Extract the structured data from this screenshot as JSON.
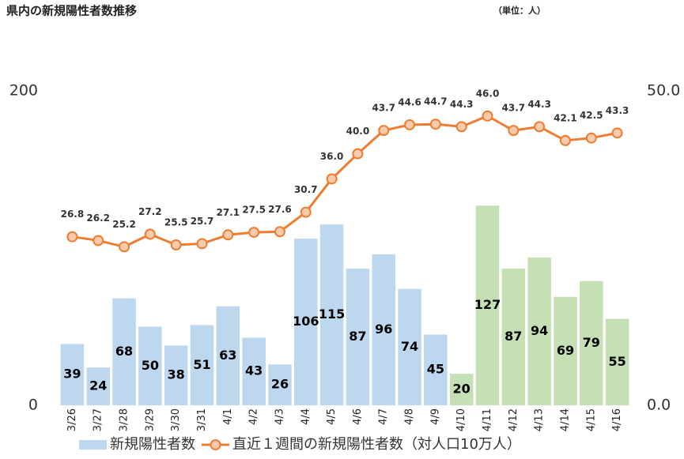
{
  "chart_data": {
    "type": "bar_line",
    "title": "県内の新規陽性者数推移",
    "unit_note": "（単位：人）",
    "categories": [
      "3/26",
      "3/27",
      "3/28",
      "3/29",
      "3/30",
      "3/31",
      "4/1",
      "4/2",
      "4/3",
      "4/4",
      "4/5",
      "4/6",
      "4/7",
      "4/8",
      "4/9",
      "4/10",
      "4/11",
      "4/12",
      "4/13",
      "4/14",
      "4/15",
      "4/16"
    ],
    "series": [
      {
        "name": "新規陽性者数",
        "type": "bar",
        "color": "#bdd7ee",
        "colors": [
          "#bdd7ee",
          "#bdd7ee",
          "#bdd7ee",
          "#bdd7ee",
          "#bdd7ee",
          "#bdd7ee",
          "#bdd7ee",
          "#bdd7ee",
          "#bdd7ee",
          "#bdd7ee",
          "#bdd7ee",
          "#bdd7ee",
          "#bdd7ee",
          "#bdd7ee",
          "#bdd7ee",
          "#c5e0b4",
          "#c5e0b4",
          "#c5e0b4",
          "#c5e0b4",
          "#c5e0b4",
          "#c5e0b4",
          "#c5e0b4"
        ],
        "values": [
          39,
          24,
          68,
          50,
          38,
          51,
          63,
          43,
          26,
          106,
          115,
          87,
          96,
          74,
          45,
          20,
          127,
          87,
          94,
          69,
          79,
          55
        ]
      },
      {
        "name": "直近１週間の新規陽性者数（対人口10万人）",
        "type": "line",
        "axis": "y2",
        "color": "#ed7d31",
        "marker_fill": "#f8cbad",
        "values": [
          26.8,
          26.2,
          25.2,
          27.2,
          25.5,
          25.7,
          27.1,
          27.5,
          27.6,
          30.7,
          36.0,
          40.0,
          43.7,
          44.6,
          44.7,
          44.3,
          46.0,
          43.7,
          44.3,
          42.1,
          42.5,
          43.3
        ],
        "value_labels": [
          "26.8",
          "26.2",
          "25.2",
          "27.2",
          "25.5",
          "25.7",
          "27.1",
          "27.5",
          "27.6",
          "30.7",
          "36.0",
          "40.0",
          "43.7",
          "44.6",
          "44.7",
          "44.3",
          "46.0",
          "43.7",
          "44.3",
          "42.1",
          "42.5",
          "43.3"
        ]
      }
    ],
    "ylim": [
      0,
      200
    ],
    "yticks": [
      0,
      200
    ],
    "y2lim": [
      0,
      50
    ],
    "y2ticks": [
      {
        "value": 0,
        "label": "0.0"
      },
      {
        "value": 50,
        "label": "50.0"
      }
    ],
    "legend": "bottom"
  }
}
